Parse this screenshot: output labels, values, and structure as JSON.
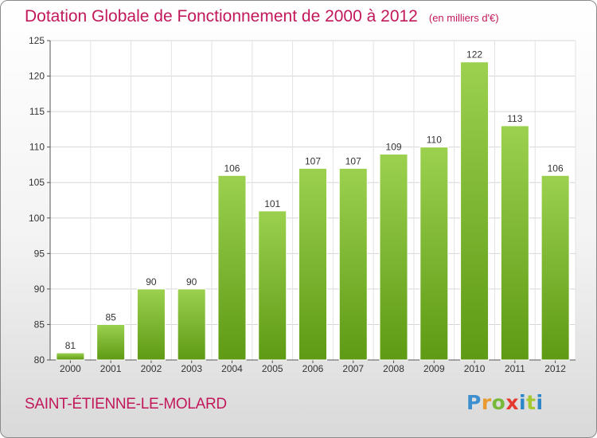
{
  "header": {
    "title": "Dotation Globale de Fonctionnement de 2000 à 2012",
    "unit": "(en milliers d'€)"
  },
  "footer": {
    "commune": "SAINT-ÉTIENNE-LE-MOLARD",
    "logo": "Proxiti"
  },
  "colors": {
    "bar_light": "#9bd14f",
    "bar_dark": "#5e9a14",
    "text_accent": "#c2185b"
  },
  "chart_data": {
    "type": "bar",
    "title": "Dotation Globale de Fonctionnement de 2000 à 2012",
    "subtitle": "(en milliers d'€)",
    "categories": [
      "2000",
      "2001",
      "2002",
      "2003",
      "2004",
      "2005",
      "2006",
      "2007",
      "2008",
      "2009",
      "2010",
      "2011",
      "2012"
    ],
    "values": [
      81,
      85,
      90,
      90,
      106,
      101,
      107,
      107,
      109,
      110,
      122,
      113,
      106
    ],
    "data_labels": [
      "81",
      "85",
      "90",
      "90",
      "106",
      "101",
      "107",
      "107",
      "109",
      "110",
      "122",
      "113",
      "106"
    ],
    "yticks": [
      "80",
      "85",
      "90",
      "95",
      "100",
      "105",
      "110",
      "115",
      "120",
      "125"
    ],
    "ylim": [
      80,
      125
    ],
    "grid": true,
    "xlabel": "",
    "ylabel": ""
  }
}
